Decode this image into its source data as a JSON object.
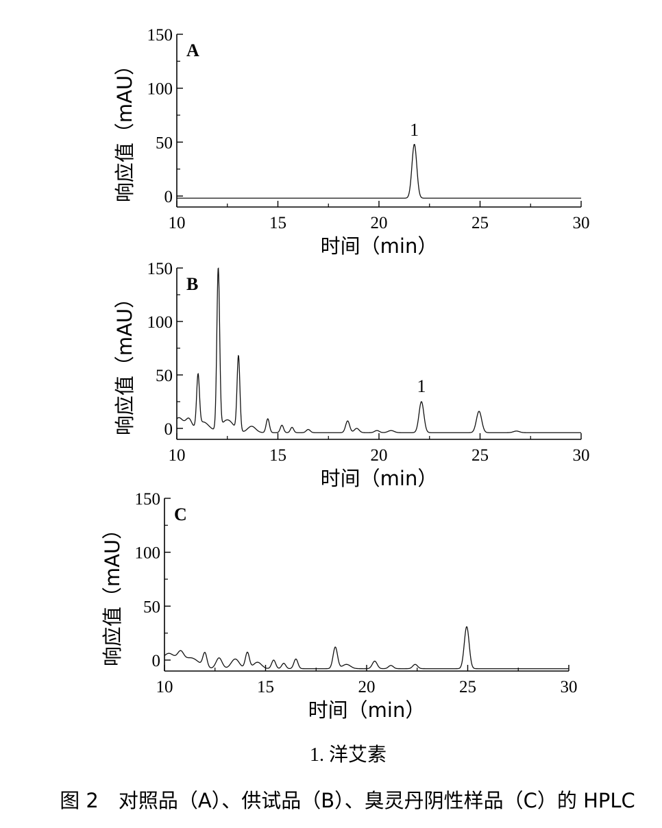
{
  "note": "1. 洋艾素",
  "caption": "图 2　对照品（A）、供试品（B）、臭灵丹阴性样品（C）的 HPLC",
  "chart_data": [
    {
      "type": "line",
      "panel": "A",
      "xlabel": "时间（min）",
      "ylabel": "响应值（mAU）",
      "xlim": [
        10,
        30
      ],
      "ylim": [
        -10,
        150
      ],
      "xticks": [
        10,
        15,
        20,
        25,
        30
      ],
      "yticks": [
        0,
        50,
        100,
        150
      ],
      "baseline": -2,
      "peaks": [
        {
          "t": 21.75,
          "h": 50,
          "w": 0.12,
          "label": "1"
        }
      ],
      "annotations": [
        {
          "text": "1",
          "x": 21.75,
          "y": 56
        }
      ]
    },
    {
      "type": "line",
      "panel": "B",
      "xlabel": "时间（min）",
      "ylabel": "响应值（mAU）",
      "xlim": [
        10,
        30
      ],
      "ylim": [
        -10,
        150
      ],
      "xticks": [
        10,
        15,
        20,
        25,
        30
      ],
      "yticks": [
        0,
        50,
        100,
        150
      ],
      "baseline": -4,
      "peaks": [
        {
          "t": 10.1,
          "h": 14,
          "w": 0.25
        },
        {
          "t": 10.6,
          "h": 11,
          "w": 0.15
        },
        {
          "t": 11.05,
          "h": 48,
          "w": 0.07
        },
        {
          "t": 11.3,
          "h": 10,
          "w": 0.3
        },
        {
          "t": 12.05,
          "h": 150,
          "w": 0.07
        },
        {
          "t": 12.5,
          "h": 12,
          "w": 0.3
        },
        {
          "t": 13.05,
          "h": 70,
          "w": 0.07
        },
        {
          "t": 13.7,
          "h": 6,
          "w": 0.2
        },
        {
          "t": 14.5,
          "h": 13,
          "w": 0.08
        },
        {
          "t": 15.2,
          "h": 7,
          "w": 0.08
        },
        {
          "t": 15.7,
          "h": 5,
          "w": 0.08
        },
        {
          "t": 16.5,
          "h": 3,
          "w": 0.1
        },
        {
          "t": 18.45,
          "h": 11,
          "w": 0.1
        },
        {
          "t": 18.9,
          "h": 4,
          "w": 0.12
        },
        {
          "t": 19.9,
          "h": 2,
          "w": 0.12
        },
        {
          "t": 20.6,
          "h": 2,
          "w": 0.15
        },
        {
          "t": 22.1,
          "h": 29,
          "w": 0.12,
          "label": "1"
        },
        {
          "t": 24.95,
          "h": 20,
          "w": 0.13
        },
        {
          "t": 26.8,
          "h": 1.5,
          "w": 0.15
        }
      ],
      "annotations": [
        {
          "text": "1",
          "x": 22.1,
          "y": 34
        }
      ]
    },
    {
      "type": "line",
      "panel": "C",
      "xlabel": "时间（min）",
      "ylabel": "响应值（mAU）",
      "xlim": [
        10,
        30
      ],
      "ylim": [
        -10,
        150
      ],
      "xticks": [
        10,
        15,
        20,
        25,
        30
      ],
      "yticks": [
        0,
        50,
        100,
        150
      ],
      "baseline": -8,
      "peaks": [
        {
          "t": 10.2,
          "h": 14,
          "w": 0.35
        },
        {
          "t": 10.8,
          "h": 9,
          "w": 0.15
        },
        {
          "t": 11.3,
          "h": 10,
          "w": 0.4
        },
        {
          "t": 12.0,
          "h": 13,
          "w": 0.1
        },
        {
          "t": 12.7,
          "h": 10,
          "w": 0.15
        },
        {
          "t": 13.5,
          "h": 9,
          "w": 0.2
        },
        {
          "t": 14.1,
          "h": 15,
          "w": 0.1
        },
        {
          "t": 14.6,
          "h": 6,
          "w": 0.2
        },
        {
          "t": 15.4,
          "h": 8,
          "w": 0.1
        },
        {
          "t": 15.9,
          "h": 5,
          "w": 0.1
        },
        {
          "t": 16.5,
          "h": 9,
          "w": 0.1
        },
        {
          "t": 18.45,
          "h": 20,
          "w": 0.11
        },
        {
          "t": 19.0,
          "h": 4,
          "w": 0.2
        },
        {
          "t": 20.4,
          "h": 7,
          "w": 0.12
        },
        {
          "t": 21.2,
          "h": 3,
          "w": 0.12
        },
        {
          "t": 22.4,
          "h": 4,
          "w": 0.12
        },
        {
          "t": 24.95,
          "h": 39,
          "w": 0.12
        }
      ],
      "annotations": []
    }
  ]
}
